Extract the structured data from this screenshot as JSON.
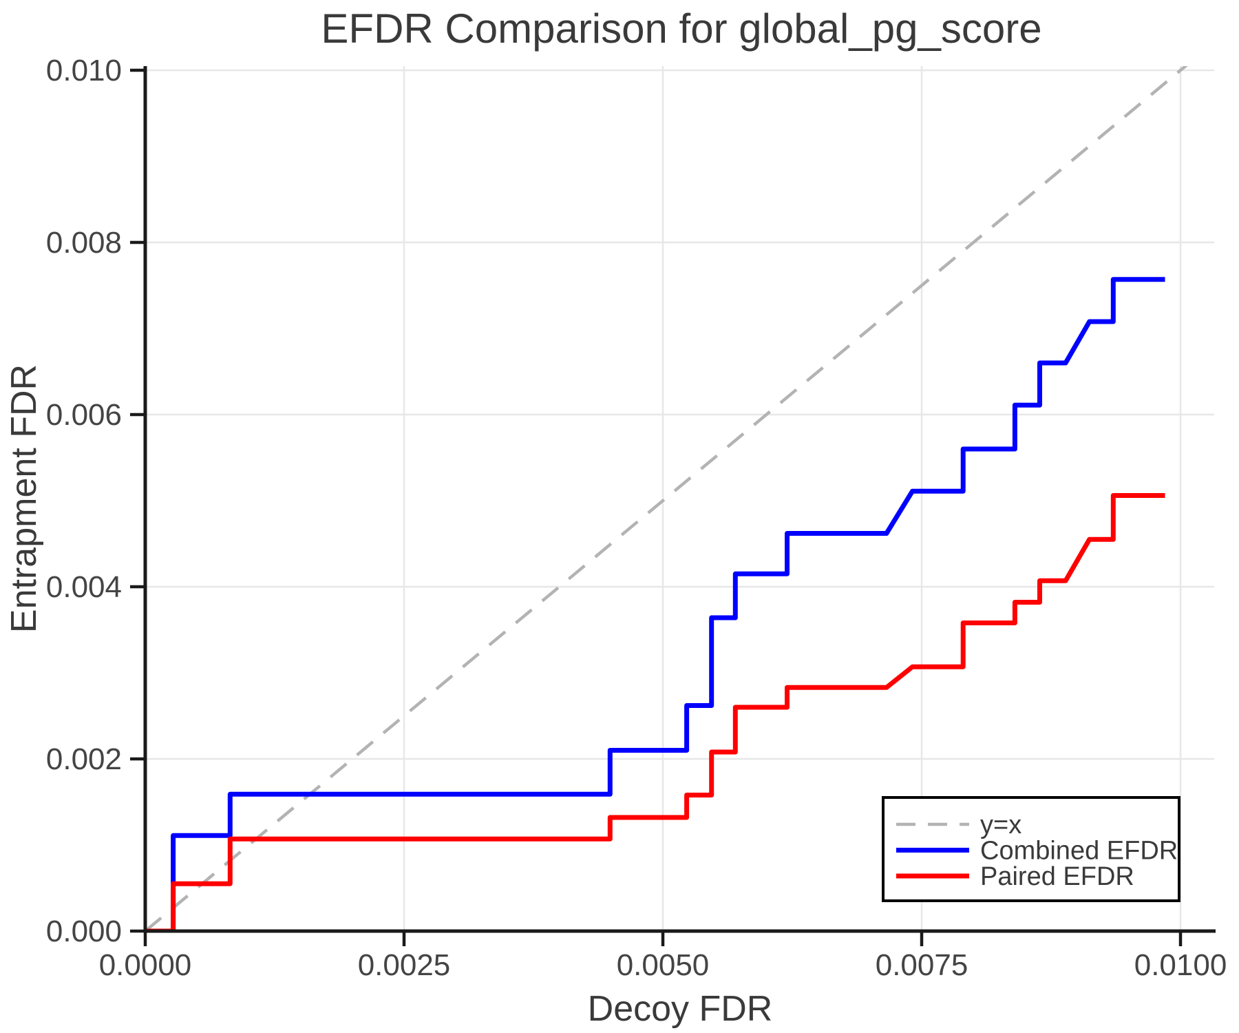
{
  "chart_data": {
    "type": "line",
    "title": "EFDR Comparison for global_pg_score",
    "xlabel": "Decoy FDR",
    "ylabel": "Entrapment FDR",
    "xlim": [
      0,
      0.010339
    ],
    "ylim": [
      0,
      0.010048
    ],
    "grid": true,
    "legend_position": "lower right",
    "xticks": [
      {
        "value": 0.0,
        "label": "0.0000"
      },
      {
        "value": 0.0025,
        "label": "0.0025"
      },
      {
        "value": 0.005,
        "label": "0.0050"
      },
      {
        "value": 0.0075,
        "label": "0.0075"
      },
      {
        "value": 0.01,
        "label": "0.0100"
      }
    ],
    "yticks": [
      {
        "value": 0.0,
        "label": "0.000"
      },
      {
        "value": 0.002,
        "label": "0.002"
      },
      {
        "value": 0.004,
        "label": "0.004"
      },
      {
        "value": 0.006,
        "label": "0.006"
      },
      {
        "value": 0.008,
        "label": "0.008"
      },
      {
        "value": 0.01,
        "label": "0.010"
      }
    ],
    "series": [
      {
        "name": "y=x",
        "color": "#b3b3b3",
        "style": "dashed",
        "width": 4.5,
        "points": [
          [
            0,
            0
          ],
          [
            0.0101,
            0.0101
          ]
        ]
      },
      {
        "name": "Combined EFDR",
        "color": "#0000ff",
        "style": "solid",
        "width": 7,
        "points": [
          [
            0.0,
            0.0
          ],
          [
            0.00027,
            0.0
          ],
          [
            0.00027,
            0.00111
          ],
          [
            0.00082,
            0.00111
          ],
          [
            0.00082,
            0.00159
          ],
          [
            0.00449,
            0.00159
          ],
          [
            0.00449,
            0.0021
          ],
          [
            0.00523,
            0.0021
          ],
          [
            0.00523,
            0.00262
          ],
          [
            0.00547,
            0.00262
          ],
          [
            0.00547,
            0.00364
          ],
          [
            0.0057,
            0.00364
          ],
          [
            0.0057,
            0.00415
          ],
          [
            0.0062,
            0.00415
          ],
          [
            0.0062,
            0.00462
          ],
          [
            0.00716,
            0.00462
          ],
          [
            0.00741,
            0.00511
          ],
          [
            0.0079,
            0.00511
          ],
          [
            0.0079,
            0.0056
          ],
          [
            0.0084,
            0.0056
          ],
          [
            0.0084,
            0.00611
          ],
          [
            0.00864,
            0.00611
          ],
          [
            0.00864,
            0.0066
          ],
          [
            0.00889,
            0.0066
          ],
          [
            0.00912,
            0.00708
          ],
          [
            0.00935,
            0.00708
          ],
          [
            0.00935,
            0.00757
          ],
          [
            0.00985,
            0.00757
          ]
        ]
      },
      {
        "name": "Paired EFDR",
        "color": "#ff0000",
        "style": "solid",
        "width": 7,
        "points": [
          [
            0.0,
            0.0
          ],
          [
            0.00027,
            0.0
          ],
          [
            0.00027,
            0.00055
          ],
          [
            0.00082,
            0.00055
          ],
          [
            0.00082,
            0.00107
          ],
          [
            0.00449,
            0.00107
          ],
          [
            0.00449,
            0.00132
          ],
          [
            0.00523,
            0.00132
          ],
          [
            0.00523,
            0.00158
          ],
          [
            0.00547,
            0.00158
          ],
          [
            0.00547,
            0.00208
          ],
          [
            0.0057,
            0.00208
          ],
          [
            0.0057,
            0.0026
          ],
          [
            0.0062,
            0.0026
          ],
          [
            0.0062,
            0.00283
          ],
          [
            0.00716,
            0.00283
          ],
          [
            0.00741,
            0.00307
          ],
          [
            0.0079,
            0.00307
          ],
          [
            0.0079,
            0.00358
          ],
          [
            0.0084,
            0.00358
          ],
          [
            0.0084,
            0.00382
          ],
          [
            0.00864,
            0.00382
          ],
          [
            0.00864,
            0.00407
          ],
          [
            0.00889,
            0.00407
          ],
          [
            0.00912,
            0.00455
          ],
          [
            0.00935,
            0.00455
          ],
          [
            0.00935,
            0.00506
          ],
          [
            0.00985,
            0.00506
          ]
        ]
      }
    ],
    "colors": {
      "grid": "#e7e7e7",
      "axis": "#1a1a1a",
      "tick_text": "#444444",
      "label_text": "#3a3a3a",
      "legend_border": "#000000",
      "background": "#ffffff"
    }
  }
}
